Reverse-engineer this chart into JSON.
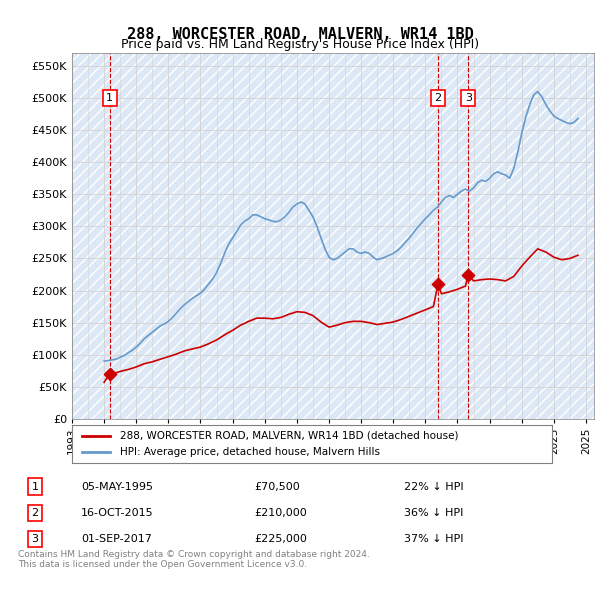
{
  "title": "288, WORCESTER ROAD, MALVERN, WR14 1BD",
  "subtitle": "Price paid vs. HM Land Registry's House Price Index (HPI)",
  "ylabel_format": "£{0}K",
  "ylim": [
    0,
    570000
  ],
  "yticks": [
    0,
    50000,
    100000,
    150000,
    200000,
    250000,
    300000,
    350000,
    400000,
    450000,
    500000,
    550000
  ],
  "xlim_start": 1993.0,
  "xlim_end": 2025.5,
  "sale_color": "#cc0000",
  "hpi_color": "#6699cc",
  "vline_color": "#cc0000",
  "transactions": [
    {
      "label": "1",
      "date_year": 1995.35,
      "price": 70500
    },
    {
      "label": "2",
      "date_year": 2015.79,
      "price": 210000
    },
    {
      "label": "3",
      "date_year": 2017.67,
      "price": 225000
    }
  ],
  "table_rows": [
    {
      "num": "1",
      "date": "05-MAY-1995",
      "price": "£70,500",
      "hpi": "22% ↓ HPI"
    },
    {
      "num": "2",
      "date": "16-OCT-2015",
      "price": "£210,000",
      "hpi": "36% ↓ HPI"
    },
    {
      "num": "3",
      "date": "01-SEP-2017",
      "price": "£225,000",
      "hpi": "37% ↓ HPI"
    }
  ],
  "legend_entries": [
    "288, WORCESTER ROAD, MALVERN, WR14 1BD (detached house)",
    "HPI: Average price, detached house, Malvern Hills"
  ],
  "footnote": "Contains HM Land Registry data © Crown copyright and database right 2024.\nThis data is licensed under the Open Government Licence v3.0.",
  "hpi_data_x": [
    1995.0,
    1995.25,
    1995.5,
    1995.75,
    1996.0,
    1996.25,
    1996.5,
    1996.75,
    1997.0,
    1997.25,
    1997.5,
    1997.75,
    1998.0,
    1998.25,
    1998.5,
    1998.75,
    1999.0,
    1999.25,
    1999.5,
    1999.75,
    2000.0,
    2000.25,
    2000.5,
    2000.75,
    2001.0,
    2001.25,
    2001.5,
    2001.75,
    2002.0,
    2002.25,
    2002.5,
    2002.75,
    2003.0,
    2003.25,
    2003.5,
    2003.75,
    2004.0,
    2004.25,
    2004.5,
    2004.75,
    2005.0,
    2005.25,
    2005.5,
    2005.75,
    2006.0,
    2006.25,
    2006.5,
    2006.75,
    2007.0,
    2007.25,
    2007.5,
    2007.75,
    2008.0,
    2008.25,
    2008.5,
    2008.75,
    2009.0,
    2009.25,
    2009.5,
    2009.75,
    2010.0,
    2010.25,
    2010.5,
    2010.75,
    2011.0,
    2011.25,
    2011.5,
    2011.75,
    2012.0,
    2012.25,
    2012.5,
    2012.75,
    2013.0,
    2013.25,
    2013.5,
    2013.75,
    2014.0,
    2014.25,
    2014.5,
    2014.75,
    2015.0,
    2015.25,
    2015.5,
    2015.75,
    2016.0,
    2016.25,
    2016.5,
    2016.75,
    2017.0,
    2017.25,
    2017.5,
    2017.75,
    2018.0,
    2018.25,
    2018.5,
    2018.75,
    2019.0,
    2019.25,
    2019.5,
    2019.75,
    2020.0,
    2020.25,
    2020.5,
    2020.75,
    2021.0,
    2021.25,
    2021.5,
    2021.75,
    2022.0,
    2022.25,
    2022.5,
    2022.75,
    2023.0,
    2023.25,
    2023.5,
    2023.75,
    2024.0,
    2024.25,
    2024.5
  ],
  "hpi_data_y": [
    90000,
    91000,
    92000,
    93000,
    96000,
    99000,
    103000,
    107000,
    112000,
    118000,
    125000,
    130000,
    135000,
    140000,
    145000,
    148000,
    152000,
    158000,
    165000,
    172000,
    178000,
    183000,
    188000,
    192000,
    196000,
    202000,
    210000,
    218000,
    228000,
    242000,
    258000,
    272000,
    282000,
    292000,
    302000,
    308000,
    312000,
    318000,
    318000,
    315000,
    312000,
    310000,
    308000,
    307000,
    310000,
    315000,
    322000,
    330000,
    335000,
    338000,
    335000,
    325000,
    315000,
    300000,
    282000,
    265000,
    252000,
    248000,
    250000,
    255000,
    260000,
    265000,
    265000,
    260000,
    258000,
    260000,
    258000,
    252000,
    248000,
    250000,
    252000,
    255000,
    258000,
    262000,
    268000,
    275000,
    282000,
    290000,
    298000,
    305000,
    312000,
    318000,
    325000,
    330000,
    338000,
    345000,
    348000,
    345000,
    350000,
    355000,
    358000,
    355000,
    360000,
    368000,
    372000,
    370000,
    375000,
    382000,
    385000,
    382000,
    380000,
    375000,
    390000,
    415000,
    445000,
    470000,
    490000,
    505000,
    510000,
    502000,
    490000,
    480000,
    472000,
    468000,
    465000,
    462000,
    460000,
    462000,
    468000
  ],
  "sale_data_x": [
    1995.35,
    2015.79,
    2017.67
  ],
  "sale_data_y": [
    70500,
    210000,
    225000
  ],
  "sale_line_x": [
    1995.0,
    1995.35,
    1995.75,
    1996.0,
    1996.5,
    1997.0,
    1997.5,
    1998.0,
    1998.5,
    1999.0,
    1999.5,
    2000.0,
    2000.5,
    2001.0,
    2001.5,
    2002.0,
    2002.5,
    2003.0,
    2003.5,
    2004.0,
    2004.5,
    2005.0,
    2005.5,
    2006.0,
    2006.5,
    2007.0,
    2007.5,
    2008.0,
    2008.5,
    2009.0,
    2009.5,
    2010.0,
    2010.5,
    2011.0,
    2011.5,
    2012.0,
    2012.5,
    2013.0,
    2013.5,
    2014.0,
    2014.5,
    2015.0,
    2015.5,
    2015.79,
    2016.0,
    2016.5,
    2017.0,
    2017.5,
    2017.67,
    2018.0,
    2018.5,
    2019.0,
    2019.5,
    2020.0,
    2020.5,
    2021.0,
    2021.5,
    2022.0,
    2022.5,
    2023.0,
    2023.5,
    2024.0,
    2024.5
  ],
  "sale_line_y": [
    57000,
    70500,
    72000,
    74000,
    77000,
    81000,
    86000,
    89000,
    93000,
    97000,
    101000,
    106000,
    109000,
    112000,
    117000,
    123000,
    131000,
    138000,
    146000,
    152000,
    157000,
    157000,
    156000,
    158000,
    163000,
    167000,
    166000,
    161000,
    151000,
    143000,
    146000,
    150000,
    152000,
    152000,
    150000,
    147000,
    149000,
    151000,
    155000,
    160000,
    165000,
    170000,
    175000,
    210000,
    195000,
    198000,
    202000,
    207000,
    225000,
    215000,
    217000,
    218000,
    217000,
    215000,
    222000,
    238000,
    252000,
    265000,
    260000,
    252000,
    248000,
    250000,
    255000
  ]
}
